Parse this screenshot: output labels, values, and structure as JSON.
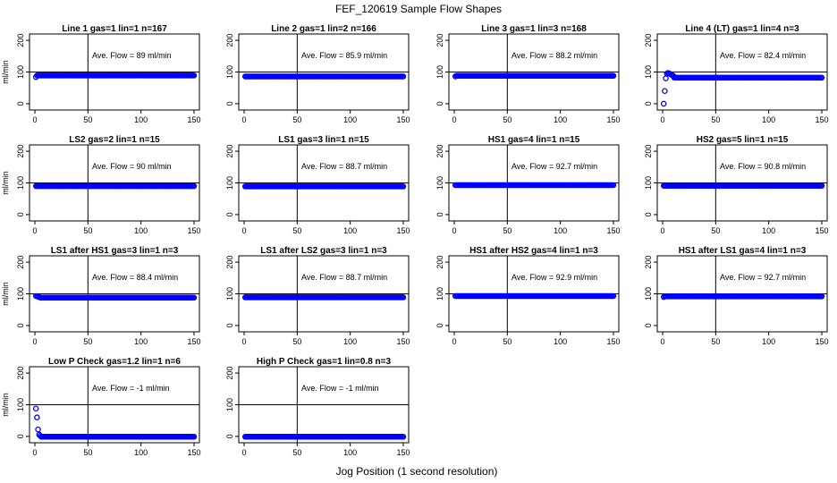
{
  "chart_data": {
    "type": "scatter",
    "title": "FEF_120619  Sample Flow Shapes",
    "xlabel": "Jog Position (1 second resolution)",
    "ylabel": "ml/min",
    "xlim": [
      0,
      150
    ],
    "ylim": [
      -20,
      220
    ],
    "xticks": [
      0,
      50,
      100,
      150
    ],
    "yticks": [
      0,
      100,
      200
    ],
    "series_color": "#0000ff",
    "reference_line_y": 100,
    "vertical_line_x": 50,
    "panels": [
      {
        "title": "Line 1 gas=1 lin=1 n=167",
        "ave_label": "Ave. Flow =  89  ml/min",
        "base": 89,
        "start": [
          [
            1,
            84
          ]
        ]
      },
      {
        "title": "Line 2 gas=1 lin=2 n=166",
        "ave_label": "Ave. Flow =  85.9  ml/min",
        "base": 86,
        "start": []
      },
      {
        "title": "Line 3 gas=1 lin=3 n=168",
        "ave_label": "Ave. Flow =  88.2  ml/min",
        "base": 88,
        "start": [
          [
            1,
            86
          ],
          [
            2,
            88
          ]
        ]
      },
      {
        "title": "Line 4 (LT) gas=1 lin=4 n=3",
        "ave_label": "Ave. Flow =  82.4  ml/min",
        "base": 82,
        "start": [
          [
            1,
            0
          ],
          [
            2,
            40
          ],
          [
            3,
            80
          ],
          [
            4,
            95
          ],
          [
            5,
            97
          ],
          [
            6,
            96
          ],
          [
            7,
            94
          ],
          [
            8,
            92
          ],
          [
            9,
            90
          ],
          [
            10,
            88
          ]
        ]
      },
      {
        "title": "LS2 gas=2 lin=1 n=15",
        "ave_label": "Ave. Flow =  90  ml/min",
        "base": 90,
        "start": []
      },
      {
        "title": "LS1 gas=3 lin=1 n=15",
        "ave_label": "Ave. Flow =  88.7  ml/min",
        "base": 89,
        "start": []
      },
      {
        "title": "HS1 gas=4 lin=1 n=15",
        "ave_label": "Ave. Flow =  92.7  ml/min",
        "base": 93,
        "start": []
      },
      {
        "title": "HS2 gas=5 lin=1 n=15",
        "ave_label": "Ave. Flow =  90.8  ml/min",
        "base": 91,
        "start": []
      },
      {
        "title": "LS1 after HS1 gas=3 lin=1 n=3",
        "ave_label": "Ave. Flow =  88.4  ml/min",
        "base": 88,
        "start": [
          [
            1,
            93
          ],
          [
            2,
            92
          ],
          [
            3,
            91
          ],
          [
            4,
            90
          ]
        ]
      },
      {
        "title": "LS1 after LS2 gas=3 lin=1 n=3",
        "ave_label": "Ave. Flow =  88.7  ml/min",
        "base": 89,
        "start": []
      },
      {
        "title": "HS1 after HS2 gas=4 lin=1 n=3",
        "ave_label": "Ave. Flow =  92.9  ml/min",
        "base": 93,
        "start": []
      },
      {
        "title": "HS1 after LS1 gas=4 lin=1 n=3",
        "ave_label": "Ave. Flow =  92.7  ml/min",
        "base": 92,
        "start": [
          [
            1,
            90
          ]
        ]
      },
      {
        "title": "Low P Check gas=1.2 lin=1 n=6",
        "ave_label": "Ave. Flow =  -1  ml/min",
        "base": -1,
        "start": [
          [
            1,
            88
          ],
          [
            2,
            60
          ],
          [
            3,
            22
          ],
          [
            4,
            6
          ],
          [
            5,
            2
          ]
        ]
      },
      {
        "title": "High P Check gas=1 lin=0.8 n=3",
        "ave_label": "Ave. Flow =  -1  ml/min",
        "base": -1,
        "start": []
      }
    ]
  }
}
